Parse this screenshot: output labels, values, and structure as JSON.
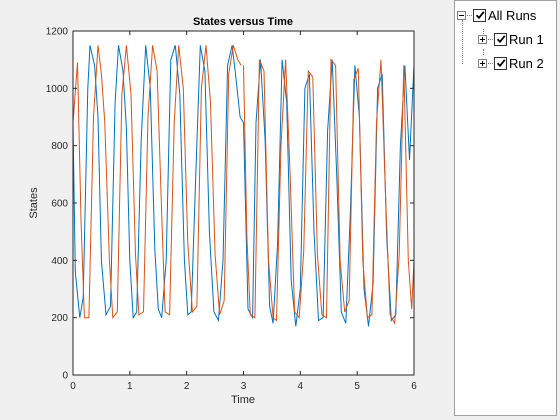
{
  "chart_data": {
    "type": "line",
    "title": "States versus Time",
    "xlabel": "Time",
    "ylabel": "States",
    "xlim": [
      0,
      6
    ],
    "ylim": [
      0,
      1200
    ],
    "xticks": [
      "0",
      "1",
      "2",
      "3",
      "4",
      "5",
      "6"
    ],
    "yticks": [
      "0",
      "200",
      "400",
      "600",
      "800",
      "1000",
      "1200"
    ],
    "grid": false,
    "series": [
      {
        "color": "#0072bd",
        "points": [
          [
            0,
            880
          ],
          [
            0.04,
            360
          ],
          [
            0.12,
            200
          ],
          [
            0.18,
            270
          ],
          [
            0.26,
            1000
          ],
          [
            0.3,
            1150
          ],
          [
            0.38,
            1080
          ],
          [
            0.44,
            900
          ],
          [
            0.5,
            400
          ],
          [
            0.58,
            210
          ],
          [
            0.66,
            240
          ],
          [
            0.74,
            950
          ],
          [
            0.8,
            1150
          ],
          [
            0.88,
            1060
          ],
          [
            0.94,
            860
          ],
          [
            1.0,
            400
          ],
          [
            1.06,
            200
          ],
          [
            1.12,
            220
          ],
          [
            1.2,
            820
          ],
          [
            1.28,
            1150
          ],
          [
            1.36,
            1000
          ],
          [
            1.44,
            440
          ],
          [
            1.5,
            230
          ],
          [
            1.56,
            200
          ],
          [
            1.64,
            400
          ],
          [
            1.72,
            1100
          ],
          [
            1.8,
            1150
          ],
          [
            1.88,
            980
          ],
          [
            1.96,
            400
          ],
          [
            2.02,
            210
          ],
          [
            2.08,
            220
          ],
          [
            2.16,
            700
          ],
          [
            2.24,
            1150
          ],
          [
            2.32,
            1060
          ],
          [
            2.4,
            500
          ],
          [
            2.48,
            220
          ],
          [
            2.56,
            190
          ],
          [
            2.64,
            400
          ],
          [
            2.72,
            1080
          ],
          [
            2.8,
            1150
          ],
          [
            2.86,
            1050
          ],
          [
            2.94,
            900
          ],
          [
            3.0,
            880
          ]
        ]
      },
      {
        "color": "#d95319",
        "points": [
          [
            0,
            880
          ],
          [
            0.08,
            1090
          ],
          [
            0.14,
            540
          ],
          [
            0.2,
            200
          ],
          [
            0.28,
            200
          ],
          [
            0.36,
            900
          ],
          [
            0.44,
            1150
          ],
          [
            0.5,
            1050
          ],
          [
            0.56,
            880
          ],
          [
            0.64,
            400
          ],
          [
            0.7,
            200
          ],
          [
            0.78,
            220
          ],
          [
            0.86,
            980
          ],
          [
            0.94,
            1150
          ],
          [
            1.02,
            980
          ],
          [
            1.1,
            420
          ],
          [
            1.16,
            210
          ],
          [
            1.24,
            220
          ],
          [
            1.32,
            900
          ],
          [
            1.4,
            1150
          ],
          [
            1.48,
            1060
          ],
          [
            1.56,
            560
          ],
          [
            1.62,
            220
          ],
          [
            1.7,
            210
          ],
          [
            1.78,
            880
          ],
          [
            1.86,
            1150
          ],
          [
            1.94,
            1000
          ],
          [
            2.02,
            460
          ],
          [
            2.1,
            220
          ],
          [
            2.18,
            240
          ],
          [
            2.26,
            1000
          ],
          [
            2.34,
            1150
          ],
          [
            2.42,
            950
          ],
          [
            2.5,
            420
          ],
          [
            2.58,
            210
          ],
          [
            2.66,
            260
          ],
          [
            2.74,
            1050
          ],
          [
            2.82,
            1150
          ],
          [
            2.9,
            1100
          ],
          [
            2.96,
            1080
          ]
        ]
      },
      {
        "color": "#0072bd",
        "points": [
          [
            3.0,
            880
          ],
          [
            3.08,
            230
          ],
          [
            3.16,
            200
          ],
          [
            3.22,
            880
          ],
          [
            3.3,
            1100
          ],
          [
            3.38,
            820
          ],
          [
            3.46,
            240
          ],
          [
            3.52,
            180
          ],
          [
            3.6,
            460
          ],
          [
            3.68,
            1100
          ],
          [
            3.76,
            950
          ],
          [
            3.84,
            330
          ],
          [
            3.92,
            170
          ],
          [
            4.0,
            300
          ],
          [
            4.08,
            1000
          ],
          [
            4.16,
            1050
          ],
          [
            4.24,
            500
          ],
          [
            4.32,
            190
          ],
          [
            4.4,
            200
          ],
          [
            4.48,
            850
          ],
          [
            4.56,
            1100
          ],
          [
            4.64,
            700
          ],
          [
            4.72,
            220
          ],
          [
            4.8,
            180
          ],
          [
            4.88,
            560
          ],
          [
            4.96,
            1080
          ],
          [
            5.04,
            900
          ],
          [
            5.12,
            300
          ],
          [
            5.2,
            170
          ],
          [
            5.28,
            320
          ],
          [
            5.36,
            1000
          ],
          [
            5.44,
            1050
          ],
          [
            5.52,
            480
          ],
          [
            5.6,
            190
          ],
          [
            5.68,
            210
          ],
          [
            5.76,
            800
          ],
          [
            5.84,
            1080
          ],
          [
            5.92,
            750
          ],
          [
            6.0,
            1080
          ]
        ]
      },
      {
        "color": "#d95319",
        "points": [
          [
            3.0,
            1080
          ],
          [
            3.06,
            480
          ],
          [
            3.12,
            210
          ],
          [
            3.2,
            200
          ],
          [
            3.28,
            1100
          ],
          [
            3.36,
            1060
          ],
          [
            3.44,
            400
          ],
          [
            3.52,
            200
          ],
          [
            3.58,
            190
          ],
          [
            3.66,
            800
          ],
          [
            3.74,
            1100
          ],
          [
            3.82,
            700
          ],
          [
            3.9,
            220
          ],
          [
            3.98,
            200
          ],
          [
            4.06,
            430
          ],
          [
            4.14,
            1060
          ],
          [
            4.22,
            1040
          ],
          [
            4.3,
            420
          ],
          [
            4.38,
            210
          ],
          [
            4.46,
            200
          ],
          [
            4.54,
            1100
          ],
          [
            4.62,
            1080
          ],
          [
            4.7,
            400
          ],
          [
            4.78,
            220
          ],
          [
            4.86,
            260
          ],
          [
            4.94,
            1030
          ],
          [
            5.02,
            1070
          ],
          [
            5.1,
            400
          ],
          [
            5.18,
            200
          ],
          [
            5.26,
            210
          ],
          [
            5.34,
            880
          ],
          [
            5.42,
            1100
          ],
          [
            5.5,
            620
          ],
          [
            5.58,
            210
          ],
          [
            5.66,
            180
          ],
          [
            5.74,
            420
          ],
          [
            5.82,
            1080
          ],
          [
            5.9,
            400
          ],
          [
            5.96,
            230
          ],
          [
            6.0,
            400
          ]
        ]
      }
    ]
  },
  "tree": {
    "root_label": "All Runs",
    "items": [
      {
        "label": "Run 1"
      },
      {
        "label": "Run 2"
      }
    ]
  }
}
